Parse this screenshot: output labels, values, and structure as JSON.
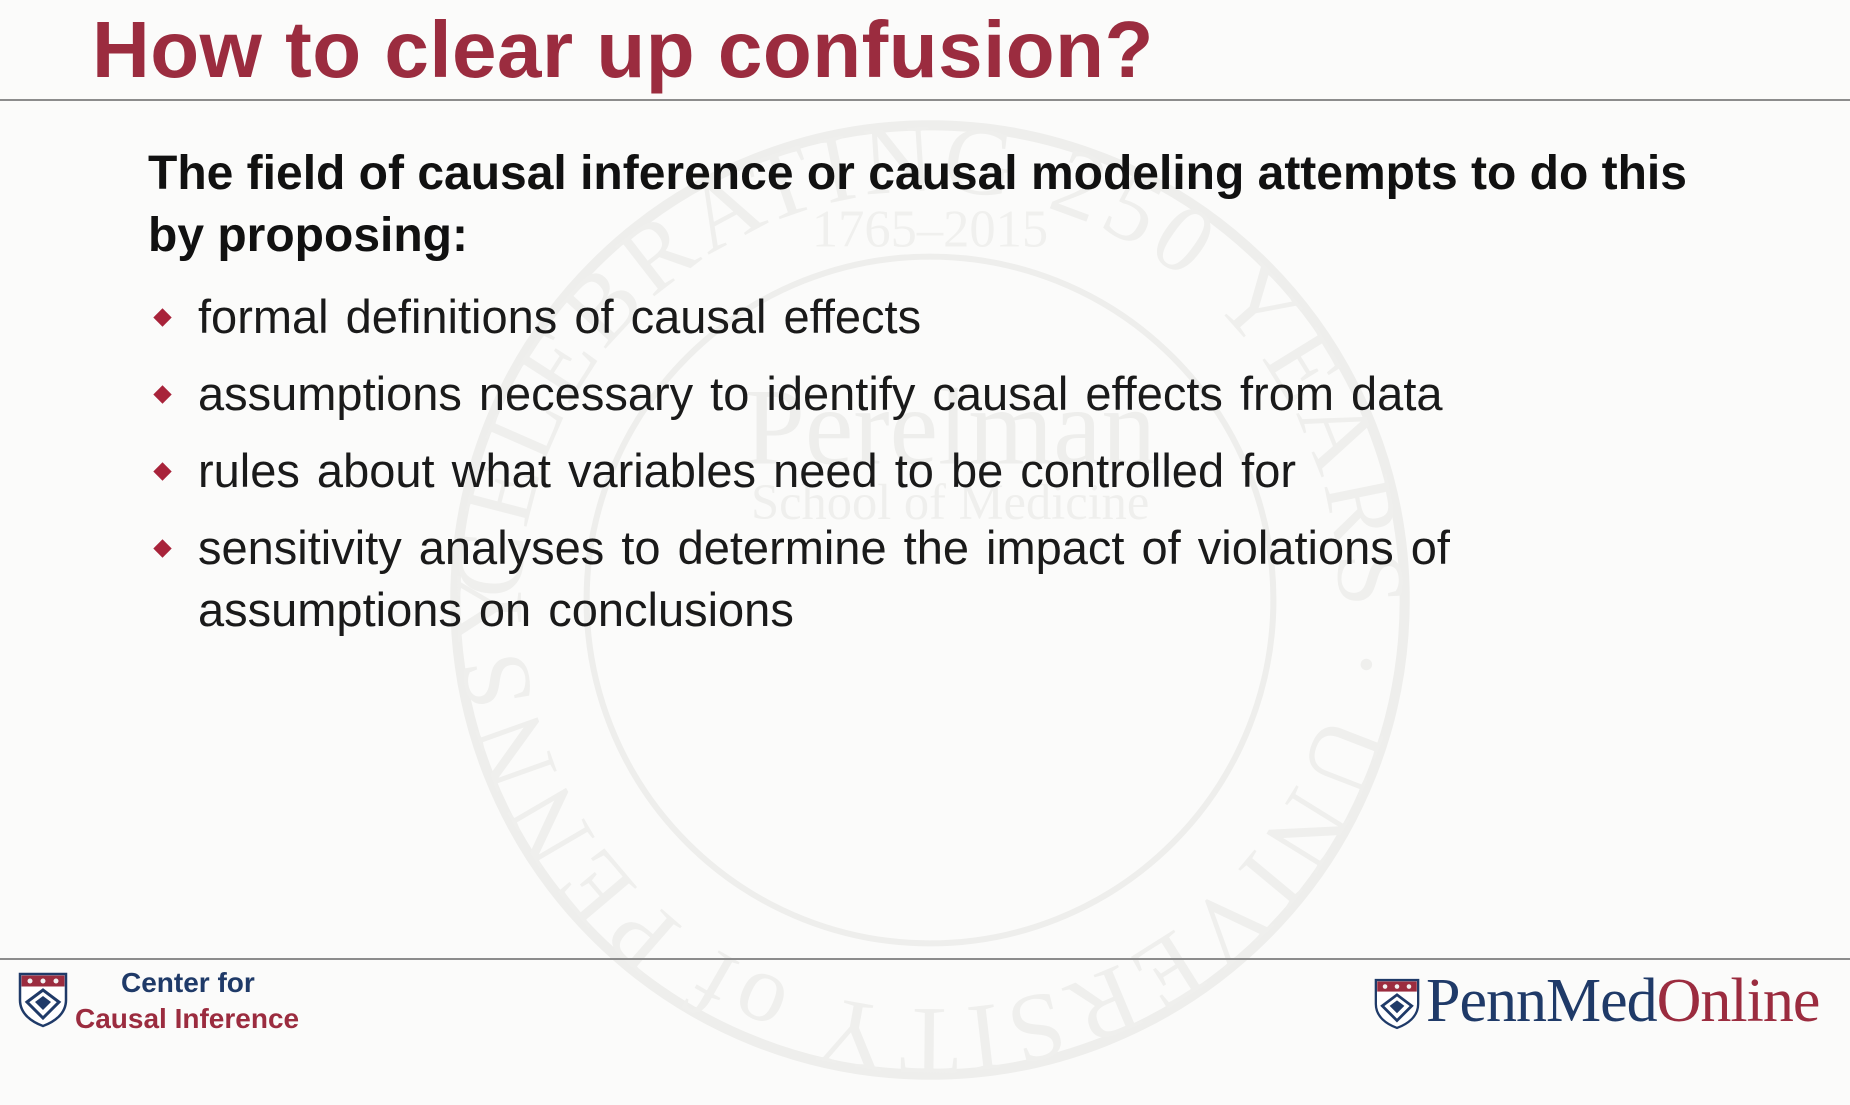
{
  "slide": {
    "title": "How to clear up confusion?",
    "intro": "The field of causal inference or causal modeling attempts to do this by proposing:",
    "bullets": [
      "formal definitions of causal effects",
      "assumptions necessary to identify causal effects from data",
      "rules about what variables need to be controlled for",
      "sensitivity analyses to determine the impact of violations of assumptions on conclusions"
    ]
  },
  "watermark": {
    "ring_text": "CELEBRATING 250 YEARS · UNIVERSITY of PENNSYLVANIA",
    "years": "1765–2015",
    "name": "Perelman",
    "subtitle": "School of Medicine"
  },
  "footer": {
    "center_line1": "Center for",
    "center_line2": "Causal Inference",
    "brand_penn": "PennMed",
    "brand_online": "Online"
  },
  "colors": {
    "title": "#9b2c3f",
    "bullet_marker": "#a8233a",
    "navy": "#1f3a68"
  },
  "icons": {
    "bullet": "diamond-bullet-icon",
    "logo": "penn-shield-icon"
  }
}
